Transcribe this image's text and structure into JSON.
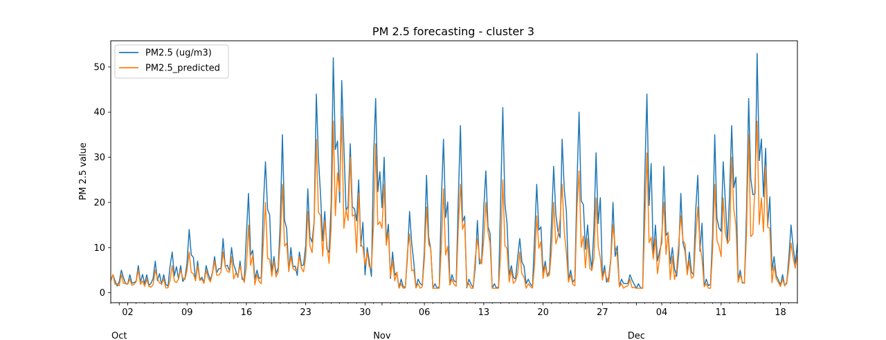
{
  "chart_data": {
    "type": "line",
    "title": "PM 2.5 forecasting - cluster 3",
    "xlabel": "",
    "ylabel": "PM 2.5 value",
    "x_range": [
      "2020-09-30",
      "2020-12-20"
    ],
    "ylim": [
      -2.2,
      55.8
    ],
    "y_ticks": [
      0,
      10,
      20,
      30,
      40,
      50
    ],
    "x_ticks": [
      {
        "date": "2020-10-02",
        "label": "02"
      },
      {
        "date": "2020-10-09",
        "label": "09"
      },
      {
        "date": "2020-10-16",
        "label": "16"
      },
      {
        "date": "2020-10-23",
        "label": "23"
      },
      {
        "date": "2020-10-30",
        "label": "30"
      },
      {
        "date": "2020-11-06",
        "label": "06"
      },
      {
        "date": "2020-11-13",
        "label": "13"
      },
      {
        "date": "2020-11-20",
        "label": "20"
      },
      {
        "date": "2020-11-27",
        "label": "27"
      },
      {
        "date": "2020-12-04",
        "label": "04"
      },
      {
        "date": "2020-12-11",
        "label": "11"
      },
      {
        "date": "2020-12-18",
        "label": "18"
      }
    ],
    "month_labels": [
      {
        "date": "2020-10-01",
        "label": "Oct"
      },
      {
        "date": "2020-11-01",
        "label": "Nov"
      },
      {
        "date": "2020-12-01",
        "label": "Dec"
      }
    ],
    "legend_position": "upper left",
    "grid": false,
    "x": [
      "2020-09-30",
      "2020-10-01",
      "2020-10-02",
      "2020-10-03",
      "2020-10-04",
      "2020-10-05",
      "2020-10-06",
      "2020-10-07",
      "2020-10-08",
      "2020-10-09",
      "2020-10-10",
      "2020-10-11",
      "2020-10-12",
      "2020-10-13",
      "2020-10-14",
      "2020-10-15",
      "2020-10-16",
      "2020-10-17",
      "2020-10-18",
      "2020-10-19",
      "2020-10-20",
      "2020-10-21",
      "2020-10-22",
      "2020-10-23",
      "2020-10-24",
      "2020-10-25",
      "2020-10-26",
      "2020-10-27",
      "2020-10-28",
      "2020-10-29",
      "2020-10-30",
      "2020-10-31",
      "2020-11-01",
      "2020-11-02",
      "2020-11-03",
      "2020-11-04",
      "2020-11-05",
      "2020-11-06",
      "2020-11-07",
      "2020-11-08",
      "2020-11-09",
      "2020-11-10",
      "2020-11-11",
      "2020-11-12",
      "2020-11-13",
      "2020-11-14",
      "2020-11-15",
      "2020-11-16",
      "2020-11-17",
      "2020-11-18",
      "2020-11-19",
      "2020-11-20",
      "2020-11-21",
      "2020-11-22",
      "2020-11-23",
      "2020-11-24",
      "2020-11-25",
      "2020-11-26",
      "2020-11-27",
      "2020-11-28",
      "2020-11-29",
      "2020-11-30",
      "2020-12-01",
      "2020-12-02",
      "2020-12-03",
      "2020-12-04",
      "2020-12-05",
      "2020-12-06",
      "2020-12-07",
      "2020-12-08",
      "2020-12-09",
      "2020-12-10",
      "2020-12-11",
      "2020-12-12",
      "2020-12-13",
      "2020-12-14",
      "2020-12-15",
      "2020-12-16",
      "2020-12-17",
      "2020-12-18",
      "2020-12-19",
      "2020-12-20"
    ],
    "series": [
      {
        "name": "PM2.5 (ug/m3)",
        "color": "#1f77b4",
        "values": [
          4,
          5,
          4,
          6,
          4,
          7,
          4,
          9,
          6,
          14,
          7,
          6,
          8,
          12,
          10,
          7,
          22,
          5,
          29,
          8,
          35,
          10,
          9,
          23,
          44,
          18,
          52,
          47,
          33,
          25,
          10,
          43,
          30,
          9,
          3,
          18,
          3,
          26,
          2,
          34,
          4,
          37,
          3,
          16,
          27,
          2,
          41,
          6,
          12,
          3,
          24,
          7,
          28,
          34,
          5,
          40,
          15,
          31,
          6,
          20,
          3,
          4,
          2,
          44,
          15,
          28,
          10,
          22,
          9,
          26,
          3,
          35,
          29,
          37,
          5,
          43,
          53,
          32,
          8,
          4,
          15,
          24
        ]
      },
      {
        "name": "PM2.5_predicted",
        "color": "#ff7f0e",
        "values": [
          4,
          4,
          3,
          5,
          3,
          5,
          3,
          6,
          5,
          9,
          6,
          5,
          7,
          9,
          8,
          6,
          15,
          4,
          20,
          7,
          24,
          8,
          8,
          18,
          34,
          16,
          38,
          39,
          30,
          22,
          9,
          33,
          24,
          7,
          2,
          13,
          2,
          19,
          1,
          23,
          3,
          24,
          2,
          12,
          20,
          1,
          25,
          5,
          9,
          2,
          17,
          6,
          20,
          24,
          4,
          27,
          12,
          21,
          5,
          15,
          2,
          3,
          1,
          31,
          12,
          20,
          8,
          17,
          7,
          19,
          2,
          24,
          21,
          30,
          4,
          35,
          38,
          28,
          6,
          3,
          11,
          19
        ]
      }
    ]
  }
}
